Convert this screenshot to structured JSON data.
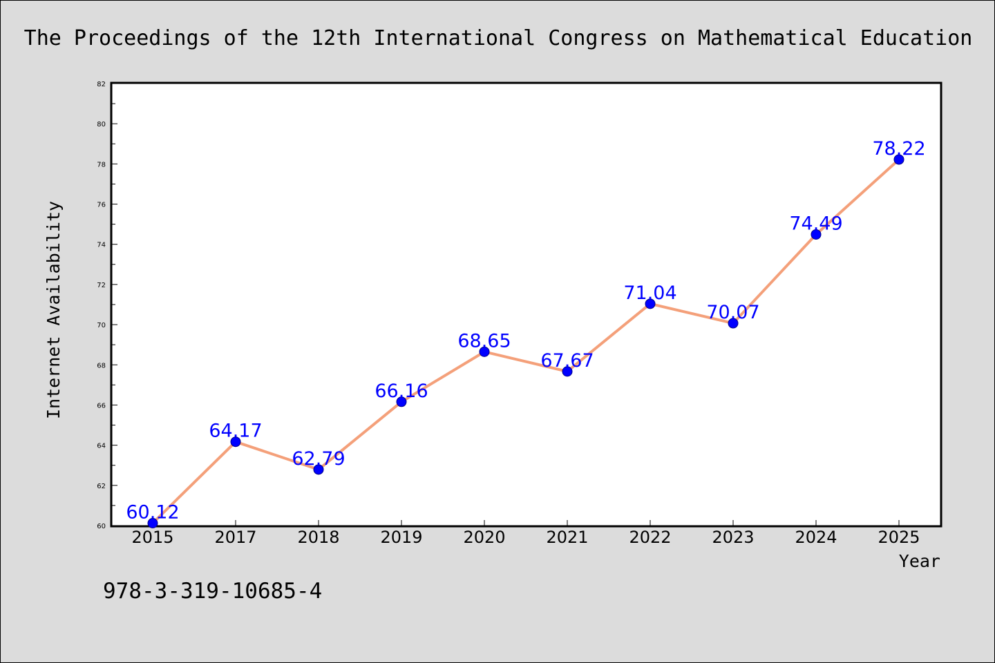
{
  "chart_data": {
    "type": "line",
    "title": "The Proceedings of the 12th International Congress on Mathematical Education",
    "xlabel": "Year",
    "ylabel": "Internet Availability",
    "categories": [
      "2015",
      "2017",
      "2018",
      "2019",
      "2020",
      "2021",
      "2022",
      "2023",
      "2024",
      "2025"
    ],
    "values": [
      60.12,
      64.17,
      62.79,
      66.16,
      68.65,
      67.67,
      71.04,
      70.07,
      74.49,
      78.22
    ],
    "data_labels": [
      "60.12",
      "64.17",
      "62.79",
      "66.16",
      "68.65",
      "67.67",
      "71.04",
      "70.07",
      "74.49",
      "78.22"
    ],
    "ylim": [
      60,
      82
    ],
    "yticks": [
      "60",
      "62",
      "64",
      "66",
      "68",
      "70",
      "72",
      "74",
      "76",
      "78",
      "80",
      "82"
    ],
    "grid": false,
    "legend": "none",
    "colors": {
      "line": "#f4a07a",
      "marker": "#0000ff",
      "data_label": "#0000ff",
      "background": "#dcdcdc",
      "plot_area": "#ffffff"
    }
  },
  "footer": {
    "isbn": "978-3-319-10685-4"
  }
}
